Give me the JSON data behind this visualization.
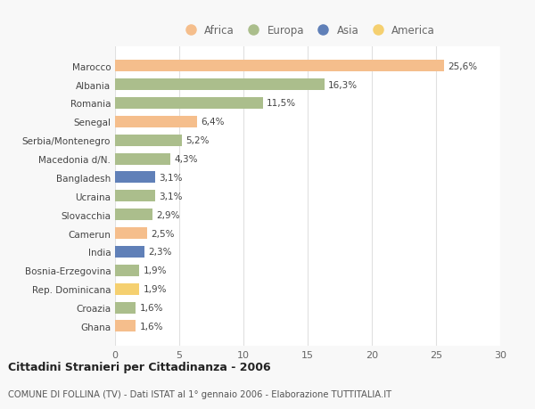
{
  "countries": [
    "Marocco",
    "Albania",
    "Romania",
    "Senegal",
    "Serbia/Montenegro",
    "Macedonia d/N.",
    "Bangladesh",
    "Ucraina",
    "Slovacchia",
    "Camerun",
    "India",
    "Bosnia-Erzegovina",
    "Rep. Dominicana",
    "Croazia",
    "Ghana"
  ],
  "values": [
    25.6,
    16.3,
    11.5,
    6.4,
    5.2,
    4.3,
    3.1,
    3.1,
    2.9,
    2.5,
    2.3,
    1.9,
    1.9,
    1.6,
    1.6
  ],
  "labels": [
    "25,6%",
    "16,3%",
    "11,5%",
    "6,4%",
    "5,2%",
    "4,3%",
    "3,1%",
    "3,1%",
    "2,9%",
    "2,5%",
    "2,3%",
    "1,9%",
    "1,9%",
    "1,6%",
    "1,6%"
  ],
  "continents": [
    "Africa",
    "Europa",
    "Europa",
    "Africa",
    "Europa",
    "Europa",
    "Asia",
    "Europa",
    "Europa",
    "Africa",
    "Asia",
    "Europa",
    "America",
    "Europa",
    "Africa"
  ],
  "colors": {
    "Africa": "#F5BE8C",
    "Europa": "#ABBE8C",
    "Asia": "#6080B8",
    "America": "#F5D070"
  },
  "legend_order": [
    "Africa",
    "Europa",
    "Asia",
    "America"
  ],
  "xlim": [
    0,
    30
  ],
  "xticks": [
    0,
    5,
    10,
    15,
    20,
    25,
    30
  ],
  "title": "Cittadini Stranieri per Cittadinanza - 2006",
  "subtitle": "COMUNE DI FOLLINA (TV) - Dati ISTAT al 1° gennaio 2006 - Elaborazione TUTTITALIA.IT",
  "background_color": "#f8f8f8",
  "bar_background": "#ffffff",
  "grid_color": "#e0e0e0"
}
